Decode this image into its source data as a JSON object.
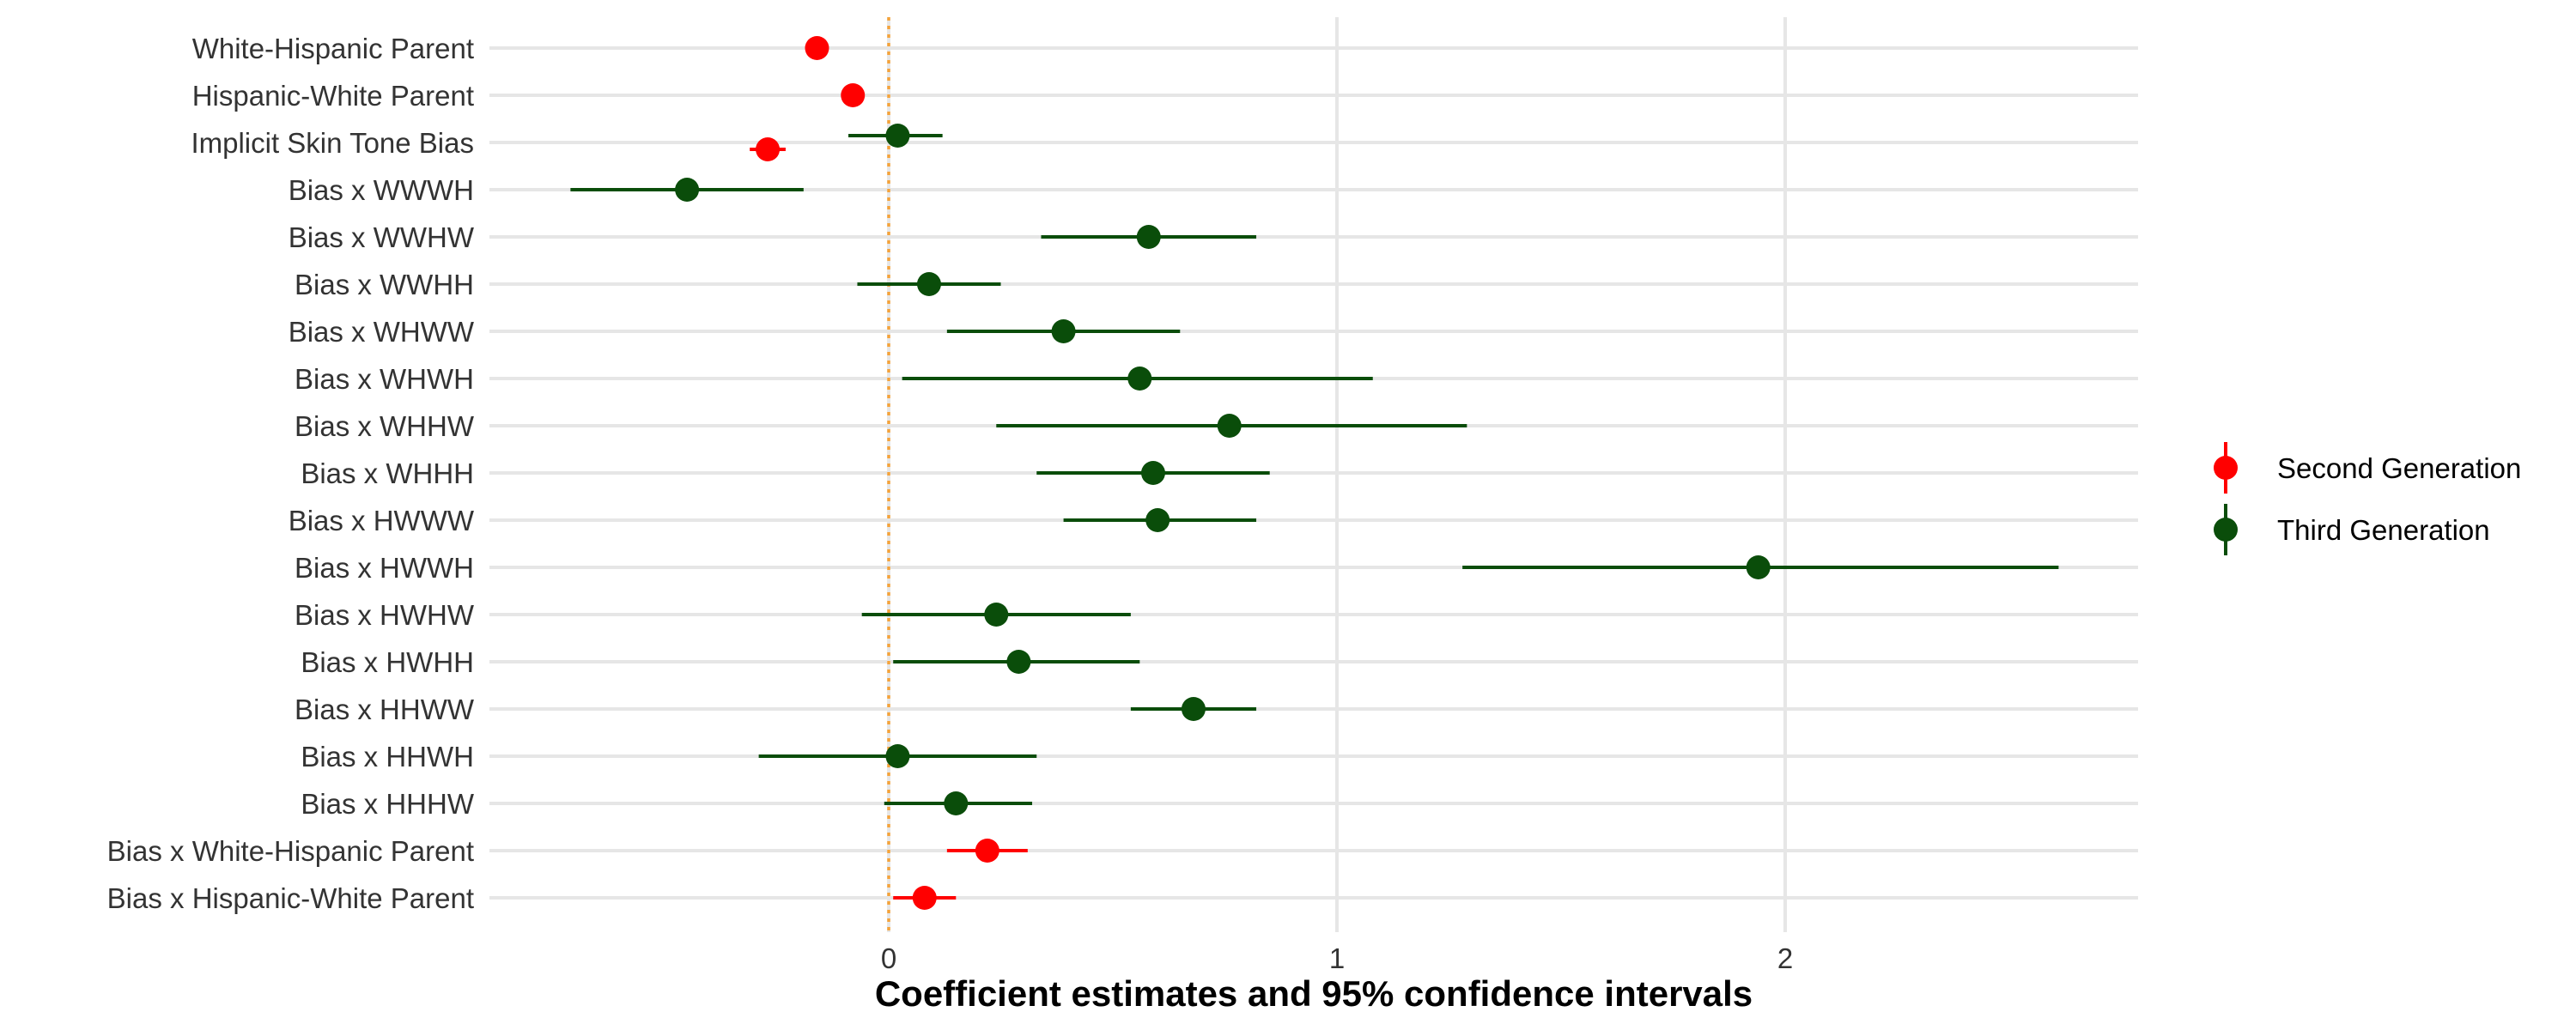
{
  "chart_data": {
    "type": "forest",
    "xlabel": "Coefficient estimates and 95% confidence intervals",
    "x_ticks": [
      0,
      1,
      2
    ],
    "xlim": [
      -0.88,
      2.78
    ],
    "reference_line": 0,
    "grid": true,
    "legend_position": "right",
    "legend": [
      {
        "name": "Second Generation",
        "color": "#ff0000"
      },
      {
        "name": "Third Generation",
        "color": "#0a4d0a"
      }
    ],
    "colors": {
      "reference_line": "#f5a33a",
      "grid": "#e6e6e6"
    },
    "rows": [
      "White-Hispanic Parent",
      "Hispanic-White Parent",
      "Implicit Skin Tone Bias",
      "Bias x WWWH",
      "Bias x WWHW",
      "Bias x WWHH",
      "Bias x WHWW",
      "Bias x WHWH",
      "Bias x WHHW",
      "Bias x WHHH",
      "Bias x HWWW",
      "Bias x HWWH",
      "Bias x HWHW",
      "Bias x HWHH",
      "Bias x HHWW",
      "Bias x HHWH",
      "Bias x HHHW",
      "Bias x White-Hispanic Parent",
      "Bias x Hispanic-White Parent"
    ],
    "points": [
      {
        "term": "White-Hispanic Parent",
        "series": "Second Generation",
        "estimate": -0.16,
        "lower": -0.16,
        "upper": -0.16,
        "nudge": 0
      },
      {
        "term": "Hispanic-White Parent",
        "series": "Second Generation",
        "estimate": -0.08,
        "lower": -0.08,
        "upper": -0.08,
        "nudge": 0
      },
      {
        "term": "Implicit Skin Tone Bias",
        "series": "Second Generation",
        "estimate": -0.27,
        "lower": -0.31,
        "upper": -0.23,
        "nudge": 1
      },
      {
        "term": "Implicit Skin Tone Bias",
        "series": "Third Generation",
        "estimate": 0.02,
        "lower": -0.09,
        "upper": 0.12,
        "nudge": -1
      },
      {
        "term": "Bias x WWWH",
        "series": "Third Generation",
        "estimate": -0.45,
        "lower": -0.71,
        "upper": -0.19,
        "nudge": 0
      },
      {
        "term": "Bias x WWHW",
        "series": "Third Generation",
        "estimate": 0.58,
        "lower": 0.34,
        "upper": 0.82,
        "nudge": 0
      },
      {
        "term": "Bias x WWHH",
        "series": "Third Generation",
        "estimate": 0.09,
        "lower": -0.07,
        "upper": 0.25,
        "nudge": 0
      },
      {
        "term": "Bias x WHWW",
        "series": "Third Generation",
        "estimate": 0.39,
        "lower": 0.13,
        "upper": 0.65,
        "nudge": 0
      },
      {
        "term": "Bias x WHWH",
        "series": "Third Generation",
        "estimate": 0.56,
        "lower": 0.03,
        "upper": 1.08,
        "nudge": 0
      },
      {
        "term": "Bias x WHHW",
        "series": "Third Generation",
        "estimate": 0.76,
        "lower": 0.24,
        "upper": 1.29,
        "nudge": 0
      },
      {
        "term": "Bias x WHHH",
        "series": "Third Generation",
        "estimate": 0.59,
        "lower": 0.33,
        "upper": 0.85,
        "nudge": 0
      },
      {
        "term": "Bias x HWWW",
        "series": "Third Generation",
        "estimate": 0.6,
        "lower": 0.39,
        "upper": 0.82,
        "nudge": 0
      },
      {
        "term": "Bias x HWWH",
        "series": "Third Generation",
        "estimate": 1.94,
        "lower": 1.28,
        "upper": 2.61,
        "nudge": 0
      },
      {
        "term": "Bias x HWHW",
        "series": "Third Generation",
        "estimate": 0.24,
        "lower": -0.06,
        "upper": 0.54,
        "nudge": 0
      },
      {
        "term": "Bias x HWHH",
        "series": "Third Generation",
        "estimate": 0.29,
        "lower": 0.01,
        "upper": 0.56,
        "nudge": 0
      },
      {
        "term": "Bias x HHWW",
        "series": "Third Generation",
        "estimate": 0.68,
        "lower": 0.54,
        "upper": 0.82,
        "nudge": 0
      },
      {
        "term": "Bias x HHWH",
        "series": "Third Generation",
        "estimate": 0.02,
        "lower": -0.29,
        "upper": 0.33,
        "nudge": 0
      },
      {
        "term": "Bias x HHHW",
        "series": "Third Generation",
        "estimate": 0.15,
        "lower": -0.01,
        "upper": 0.32,
        "nudge": 0
      },
      {
        "term": "Bias x White-Hispanic Parent",
        "series": "Second Generation",
        "estimate": 0.22,
        "lower": 0.13,
        "upper": 0.31,
        "nudge": 0
      },
      {
        "term": "Bias x Hispanic-White Parent",
        "series": "Second Generation",
        "estimate": 0.08,
        "lower": 0.01,
        "upper": 0.15,
        "nudge": 0
      }
    ]
  }
}
